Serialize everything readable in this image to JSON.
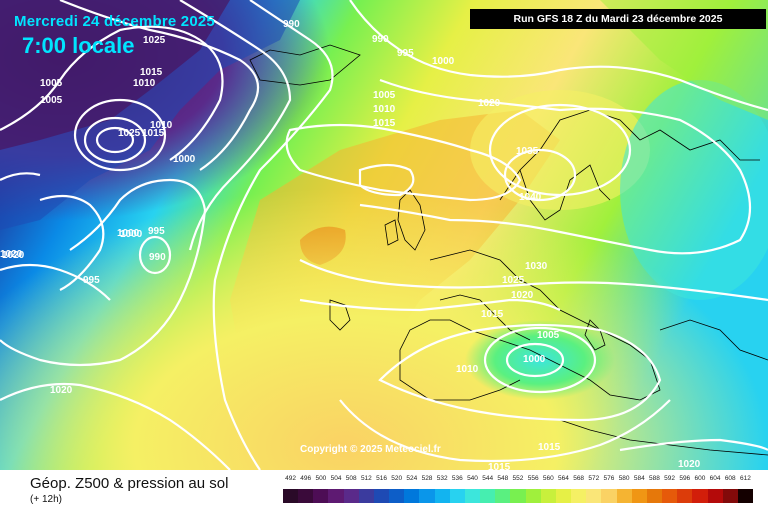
{
  "header": {
    "date": "Mercredi 24 décembre 2025",
    "time": "7:00 locale",
    "run": "Run GFS 18 Z du Mardi 23 décembre 2025"
  },
  "copyright": "Copyright © 2025 Meteociel.fr",
  "footer": {
    "title": "Géop. Z500 & pression au sol",
    "subtitle": "(+ 12h)"
  },
  "legend": {
    "values": [
      "492",
      "496",
      "500",
      "504",
      "508",
      "512",
      "516",
      "520",
      "524",
      "528",
      "532",
      "536",
      "540",
      "544",
      "548",
      "552",
      "556",
      "560",
      "564",
      "568",
      "572",
      "576",
      "580",
      "584",
      "588",
      "592",
      "596",
      "600",
      "604",
      "608",
      "612"
    ],
    "colors": [
      "#2a0a28",
      "#3a0a3a",
      "#4d0d55",
      "#5e1a72",
      "#5a2a8a",
      "#3b3b9e",
      "#1e4ab4",
      "#0d5ec8",
      "#0078dc",
      "#0a96ea",
      "#12b4f0",
      "#28d2f0",
      "#3ce6dc",
      "#46eeb0",
      "#5af080",
      "#78f050",
      "#a0f03c",
      "#c8f03c",
      "#e6f046",
      "#f5f064",
      "#fae678",
      "#fad264",
      "#f5b432",
      "#f09614",
      "#e6780a",
      "#e65a0a",
      "#dc3c0a",
      "#d21e0a",
      "#b40a0a",
      "#820a0a",
      "#140000"
    ]
  },
  "isobar_labels": [
    "1020",
    "1025",
    "1015",
    "1010",
    "990",
    "990",
    "995",
    "1000",
    "1005",
    "1010",
    "1015",
    "1000",
    "1005",
    "1005",
    "1025",
    "1015",
    "1010",
    "1000",
    "1000",
    "995",
    "990",
    "1020",
    "995",
    "1020",
    "1035",
    "1040",
    "1030",
    "1025",
    "1020",
    "1015",
    "1005",
    "1000",
    "1010",
    "1015",
    "1015",
    "1020",
    "1020"
  ]
}
